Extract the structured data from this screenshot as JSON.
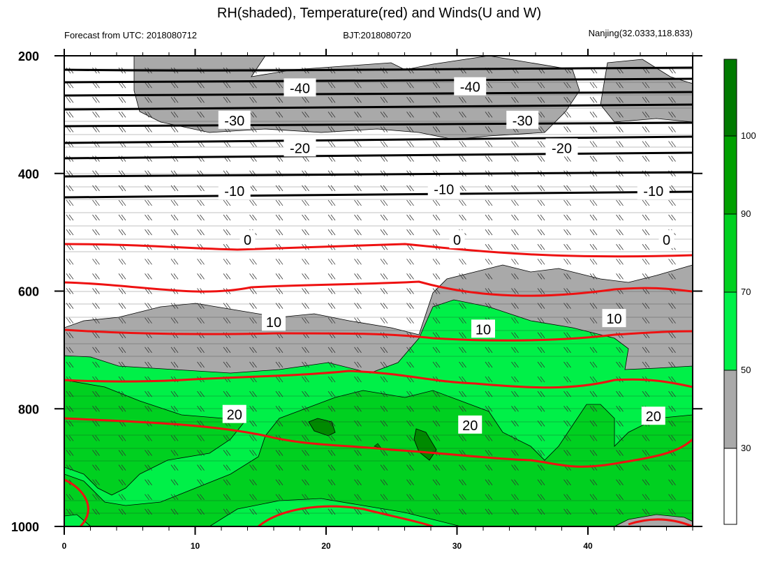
{
  "title": "RH(shaded), Temperature(red) and Winds(U and W)",
  "subtitle_left": "Forecast from UTC: 2018080712",
  "subtitle_center": "BJT:2018080720",
  "subtitle_right": "Nanjing(32.0333,118.833)",
  "chart_data": {
    "type": "contour",
    "xlabel": "",
    "ylabel": "",
    "x_ticks": [
      0,
      10,
      20,
      30,
      40
    ],
    "xlim": [
      0,
      48
    ],
    "y_ticks": [
      200,
      400,
      600,
      800,
      1000
    ],
    "ylim": [
      1000,
      200
    ],
    "colorbar": {
      "levels": [
        30,
        50,
        70,
        90,
        100
      ],
      "colors": [
        "#ffffff",
        "#a8a8a8",
        "#00ee44",
        "#00d020",
        "#00b000",
        "#008800",
        "#006a00"
      ]
    },
    "temperature_contour_labels": {
      "-40": [
        [
          18,
          255
        ],
        [
          31,
          253
        ]
      ],
      "-30": [
        [
          13,
          310
        ],
        [
          35,
          310
        ]
      ],
      "-20": [
        [
          18,
          357
        ],
        [
          38,
          357
        ]
      ],
      "-10": [
        [
          13,
          430
        ],
        [
          29,
          427
        ],
        [
          45,
          430
        ]
      ],
      "0": [
        [
          14,
          513
        ],
        [
          30,
          513
        ],
        [
          46,
          513
        ]
      ],
      "10": [
        [
          16,
          653
        ],
        [
          32,
          665
        ],
        [
          42,
          647
        ]
      ],
      "20": [
        [
          13,
          810
        ],
        [
          31,
          828
        ],
        [
          45,
          813
        ]
      ]
    },
    "rh_levels_shown": [
      30,
      50,
      70,
      90
    ]
  },
  "colors": {
    "cold_isotherm": "#000000",
    "warm_isotherm": "#ee1111",
    "rh_30_50": "#a9a9a9",
    "rh_50_70": "#00f048",
    "rh_70_90": "#00d020",
    "rh_90_100": "#008a00"
  }
}
